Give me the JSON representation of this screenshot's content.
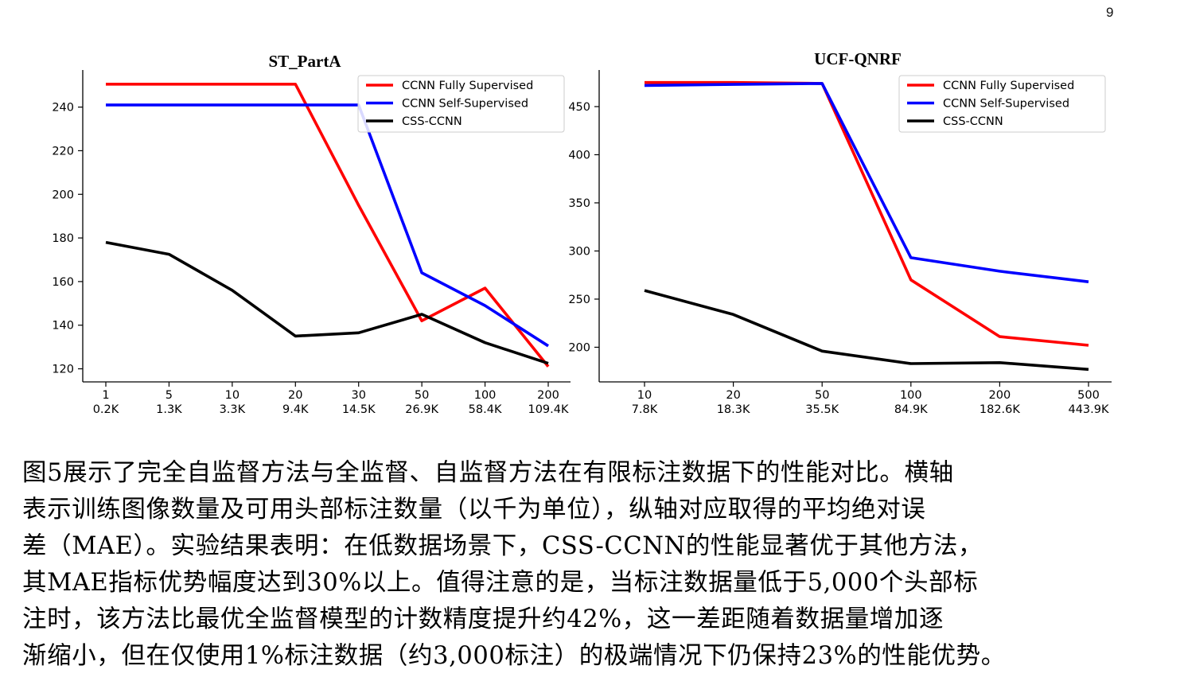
{
  "page": {
    "number": "9"
  },
  "chart_data": [
    {
      "type": "line",
      "title": "ST_PartA",
      "categories": [
        "1",
        "5",
        "10",
        "20",
        "30",
        "50",
        "100",
        "200"
      ],
      "categories2": [
        "0.2K",
        "1.3K",
        "3.3K",
        "9.4K",
        "14.5K",
        "26.9K",
        "58.4K",
        "109.4K"
      ],
      "xlabel": "",
      "ylabel": "",
      "ylim": [
        114,
        257
      ],
      "yticks": [
        "120",
        "140",
        "160",
        "180",
        "200",
        "220",
        "240"
      ],
      "ytick_values": [
        120,
        140,
        160,
        180,
        200,
        220,
        240
      ],
      "legend_position": "top-right",
      "series": [
        {
          "name": "CCNN Fully Supervised",
          "color": "#ff0000",
          "values": [
            250.5,
            250.5,
            250.5,
            250.5,
            195,
            142,
            157,
            121
          ]
        },
        {
          "name": "CCNN Self-Supervised",
          "color": "#0000ff",
          "values": [
            241,
            241,
            241,
            241,
            241,
            164,
            149,
            130.5
          ]
        },
        {
          "name": "CSS-CCNN",
          "color": "#000000",
          "values": [
            178,
            172.5,
            156,
            135,
            136.5,
            145,
            132,
            122.5
          ]
        }
      ]
    },
    {
      "type": "line",
      "title": "UCF-QNRF",
      "categories": [
        "10",
        "20",
        "50",
        "100",
        "200",
        "500"
      ],
      "categories2": [
        "7.8K",
        "18.3K",
        "35.5K",
        "84.9K",
        "182.6K",
        "443.9K"
      ],
      "xlabel": "",
      "ylabel": "",
      "ylim": [
        164,
        488
      ],
      "yticks": [
        "200",
        "250",
        "300",
        "350",
        "400",
        "450"
      ],
      "ytick_values": [
        200,
        250,
        300,
        350,
        400,
        450
      ],
      "legend_position": "top-right",
      "series": [
        {
          "name": "CCNN Fully Supervised",
          "color": "#ff0000",
          "values": [
            475,
            475,
            474,
            270,
            211,
            202
          ]
        },
        {
          "name": "CCNN Self-Supervised",
          "color": "#0000ff",
          "values": [
            472,
            473,
            474,
            293,
            279,
            268
          ]
        },
        {
          "name": "CSS-CCNN",
          "color": "#000000",
          "values": [
            259,
            234,
            196,
            183,
            184,
            177
          ]
        }
      ]
    }
  ],
  "caption": {
    "lines": [
      "图5展示了完全自监督方法与全监督、自监督方法在有限标注数据下的性能对比。横轴",
      "表示训练图像数量及可用头部标注数量（以千为单位），纵轴对应取得的平均绝对误",
      "差（MAE）。实验结果表明：在低数据场景下，CSS-CCNN的性能显著优于其他方法，",
      "其MAE指标优势幅度达到30%以上。值得注意的是，当标注数据量低于5,000个头部标",
      "注时，该方法比最优全监督模型的计数精度提升约42%，这一差距随着数据量增加逐",
      "渐缩小，但在仅使用1%标注数据（约3,000标注）的极端情况下仍保持23%的性能优势。"
    ]
  }
}
